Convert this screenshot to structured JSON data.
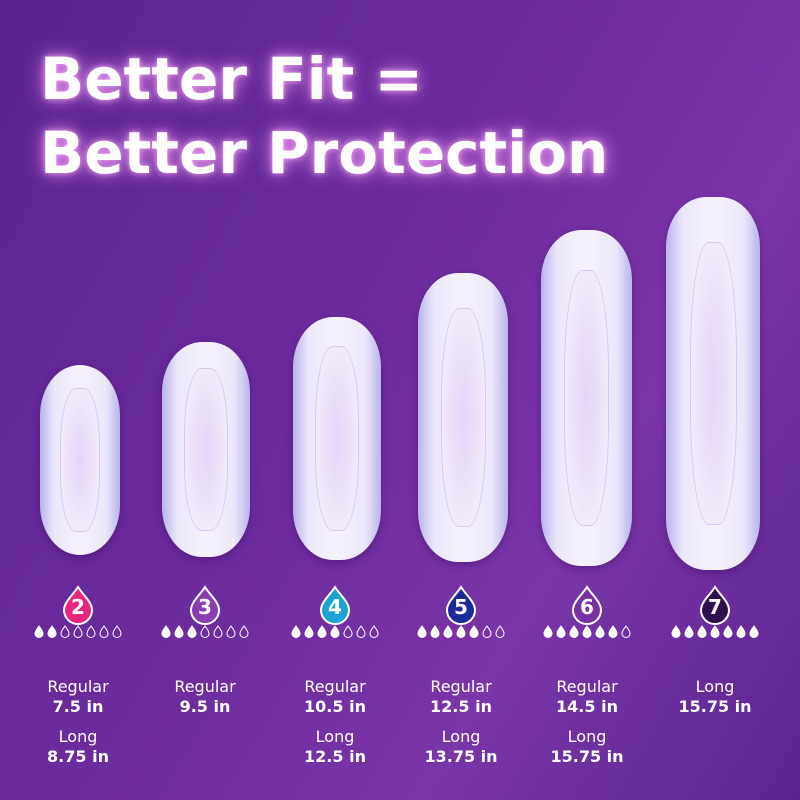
{
  "title": {
    "line1": "Better Fit =",
    "line2": "Better Protection"
  },
  "products": [
    {
      "level": "2",
      "color": "#e8257f",
      "filled": 2,
      "total": 7,
      "sizes": [
        {
          "label": "Regular",
          "length": "7.5 in"
        },
        {
          "label": "Long",
          "length": "8.75 in"
        }
      ]
    },
    {
      "level": "3",
      "color": "#8a3db0",
      "filled": 3,
      "total": 7,
      "sizes": [
        {
          "label": "Regular",
          "length": "9.5 in"
        }
      ]
    },
    {
      "level": "4",
      "color": "#1ba3d6",
      "filled": 4,
      "total": 7,
      "sizes": [
        {
          "label": "Regular",
          "length": "10.5 in"
        },
        {
          "label": "Long",
          "length": "12.5 in"
        }
      ]
    },
    {
      "level": "5",
      "color": "#1d2a9a",
      "filled": 5,
      "total": 7,
      "sizes": [
        {
          "label": "Regular",
          "length": "12.5 in"
        },
        {
          "label": "Long",
          "length": "13.75 in"
        }
      ]
    },
    {
      "level": "6",
      "color": "#7a2fa3",
      "filled": 6,
      "total": 7,
      "sizes": [
        {
          "label": "Regular",
          "length": "14.5 in"
        },
        {
          "label": "Long",
          "length": "15.75 in"
        }
      ]
    },
    {
      "level": "7",
      "color": "#2e0f52",
      "filled": 7,
      "total": 7,
      "sizes": [
        {
          "label": "Long",
          "length": "15.75 in"
        }
      ]
    }
  ]
}
